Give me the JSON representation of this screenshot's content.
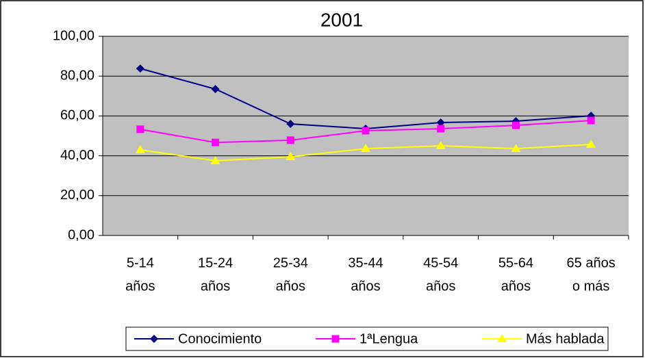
{
  "chart_data": {
    "type": "line",
    "title": "2001",
    "categories": [
      [
        "5-14",
        "años"
      ],
      [
        "15-24",
        "años"
      ],
      [
        "25-34",
        "años"
      ],
      [
        "35-44",
        "años"
      ],
      [
        "45-54",
        "años"
      ],
      [
        "55-64",
        "años"
      ],
      [
        "65 años",
        "o más"
      ]
    ],
    "series": [
      {
        "name": "Conocimiento",
        "color": "#000080",
        "marker": "diamond",
        "values": [
          83.8,
          73.5,
          56.0,
          53.6,
          56.7,
          57.4,
          60.1
        ]
      },
      {
        "name": "1ªLengua",
        "color": "#ff00ff",
        "marker": "square",
        "values": [
          53.3,
          46.7,
          47.8,
          52.6,
          53.6,
          55.3,
          57.7
        ]
      },
      {
        "name": "Más hablada",
        "color": "#ffff00",
        "marker": "triangle",
        "values": [
          43.0,
          37.5,
          39.5,
          43.6,
          45.0,
          43.6,
          45.7
        ]
      }
    ],
    "ylim": [
      0,
      100
    ],
    "yticks": [
      {
        "value": 0,
        "label": "0,00"
      },
      {
        "value": 20,
        "label": "20,00"
      },
      {
        "value": 40,
        "label": "40,00"
      },
      {
        "value": 60,
        "label": "60,00"
      },
      {
        "value": 80,
        "label": "80,00"
      },
      {
        "value": 100,
        "label": "100,00"
      }
    ],
    "grid": true,
    "legend": "bottom"
  }
}
